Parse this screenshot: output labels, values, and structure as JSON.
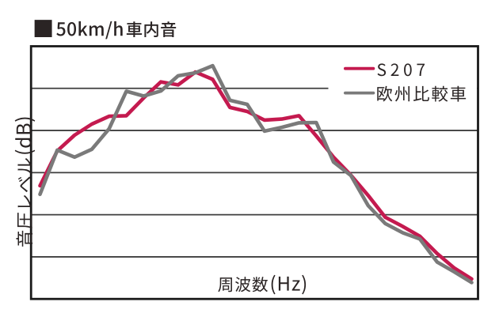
{
  "figure": {
    "background": "#ffffff",
    "title": "■50km/h車内音",
    "x_axis_label": "周波数(Hz)",
    "y_axis_label": "音圧レベル(dB)",
    "legend": [
      {
        "label": "S207",
        "swatch_color": "#c41a4f"
      },
      {
        "label": "欧州比較車",
        "swatch_color": "#7a7a7a"
      }
    ]
  },
  "chart_data": {
    "type": "line",
    "title": "■50km/h車内音",
    "xlabel": "周波数(Hz)",
    "ylabel": "音圧レベル(dB)",
    "x_ticks": "none (unlabeled frequency axis)",
    "y_ticks": "none (unlabeled sound-pressure-level axis)",
    "x": "26 equally spaced frequency bands (no tick labels)",
    "ylim": [
      0,
      100
    ],
    "y_units": "relative level, percent of plot height (axis is unlabeled)",
    "grid": "5 horizontal gridlines, no vertical gridlines",
    "legend_position": "top-right inside plot area, on white background patch",
    "series": [
      {
        "name": "S207",
        "color": "#c41a4f",
        "values": [
          44.8,
          58.6,
          64.8,
          69.2,
          72.3,
          72.5,
          79.5,
          85.9,
          84.7,
          89.8,
          86.9,
          75.8,
          74.2,
          70.8,
          71.2,
          72.5,
          64.5,
          56.1,
          49.0,
          41.0,
          32.3,
          28.7,
          24.8,
          18.0,
          12.2,
          7.9
        ]
      },
      {
        "name": "欧州比較車",
        "color": "#7a7a7a",
        "values": [
          41.4,
          58.9,
          56.1,
          59.2,
          67.3,
          82.2,
          80.3,
          82.3,
          88.3,
          89.5,
          92.3,
          78.6,
          77.0,
          66.4,
          67.9,
          69.7,
          69.8,
          54.2,
          48.9,
          37.0,
          29.8,
          26.2,
          23.7,
          14.6,
          10.7,
          6.5
        ]
      }
    ]
  }
}
